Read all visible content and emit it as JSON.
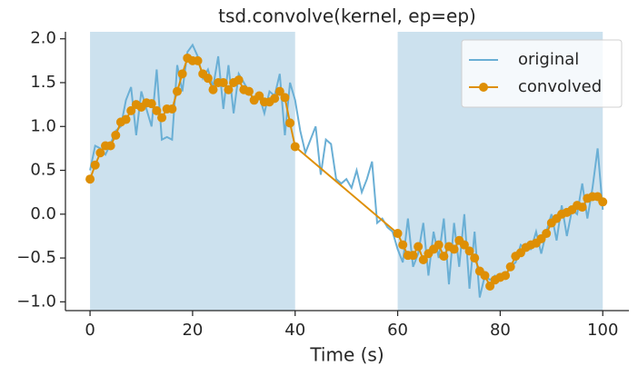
{
  "chart_data": {
    "type": "line",
    "title": "tsd.convolve(kernel, ep=ep)",
    "xlabel": "Time (s)",
    "xlim": [
      -4.8,
      105.1
    ],
    "ylim": [
      -1.1,
      2.08
    ],
    "xticks": [
      0,
      20,
      40,
      60,
      80,
      100
    ],
    "yticks": [
      {
        "value": -1,
        "label": "−1.0"
      },
      {
        "value": -0.5,
        "label": "−0.5"
      },
      {
        "value": 0,
        "label": "0.0"
      },
      {
        "value": 0.5,
        "label": "0.5"
      },
      {
        "value": 1,
        "label": "1.0"
      },
      {
        "value": 1.5,
        "label": "1.5"
      },
      {
        "value": 2,
        "label": "2.0"
      }
    ],
    "spans": [
      [
        0,
        40
      ],
      [
        60,
        100
      ]
    ],
    "span_color": "#cce1ee",
    "legend": "upper right",
    "series": [
      {
        "name": "original",
        "color": "#6aafd5",
        "marker": null,
        "x": [
          0,
          1,
          2,
          3,
          4,
          5,
          6,
          7,
          8,
          9,
          10,
          11,
          12,
          13,
          14,
          15,
          16,
          17,
          18,
          19,
          20,
          21,
          22,
          23,
          24,
          25,
          26,
          27,
          28,
          29,
          30,
          31,
          32,
          33,
          34,
          35,
          36,
          37,
          38,
          39,
          40,
          41,
          42,
          43,
          44,
          45,
          46,
          47,
          48,
          49,
          50,
          51,
          52,
          53,
          54,
          55,
          56,
          57,
          58,
          59,
          60,
          61,
          62,
          63,
          64,
          65,
          66,
          67,
          68,
          69,
          70,
          71,
          72,
          73,
          74,
          75,
          76,
          77,
          78,
          79,
          80,
          81,
          82,
          83,
          84,
          85,
          86,
          87,
          88,
          89,
          90,
          91,
          92,
          93,
          94,
          95,
          96,
          97,
          98,
          99,
          100
        ],
        "values": [
          0.5,
          0.78,
          0.75,
          0.68,
          0.8,
          0.95,
          1.0,
          1.3,
          1.45,
          0.9,
          1.4,
          1.2,
          1.0,
          1.65,
          0.85,
          0.88,
          0.85,
          1.7,
          1.4,
          1.85,
          1.93,
          1.8,
          1.55,
          1.65,
          1.45,
          1.8,
          1.2,
          1.7,
          1.15,
          1.6,
          1.5,
          1.4,
          1.3,
          1.35,
          1.15,
          1.4,
          1.35,
          1.6,
          0.9,
          1.5,
          1.3,
          0.95,
          0.7,
          0.85,
          1.0,
          0.45,
          0.85,
          0.8,
          0.4,
          0.35,
          0.4,
          0.3,
          0.5,
          0.25,
          0.4,
          0.6,
          -0.1,
          -0.05,
          -0.15,
          -0.2,
          -0.4,
          -0.55,
          -0.05,
          -0.6,
          -0.45,
          -0.1,
          -0.7,
          -0.2,
          -0.5,
          -0.05,
          -0.8,
          -0.1,
          -0.6,
          0.0,
          -0.85,
          -0.2,
          -0.95,
          -0.7,
          -0.75,
          -0.7,
          -0.75,
          -0.7,
          -0.6,
          -0.55,
          -0.35,
          -0.4,
          -0.4,
          -0.2,
          -0.45,
          -0.2,
          0.0,
          -0.3,
          0.1,
          -0.25,
          0.05,
          0.0,
          0.35,
          -0.05,
          0.3,
          0.75,
          0.05
        ]
      },
      {
        "name": "convolved",
        "color": "#de8f05",
        "marker": "o",
        "x": [
          0,
          1,
          2,
          3,
          4,
          5,
          6,
          7,
          8,
          9,
          10,
          11,
          12,
          13,
          14,
          15,
          16,
          17,
          18,
          19,
          20,
          21,
          22,
          23,
          24,
          25,
          26,
          27,
          28,
          29,
          30,
          31,
          32,
          33,
          34,
          35,
          36,
          37,
          38,
          39,
          40,
          60,
          61,
          62,
          63,
          64,
          65,
          66,
          67,
          68,
          69,
          70,
          71,
          72,
          73,
          74,
          75,
          76,
          77,
          78,
          79,
          80,
          81,
          82,
          83,
          84,
          85,
          86,
          87,
          88,
          89,
          90,
          91,
          92,
          93,
          94,
          95,
          96,
          97,
          98,
          99,
          100
        ],
        "values": [
          0.4,
          0.56,
          0.7,
          0.78,
          0.78,
          0.9,
          1.05,
          1.08,
          1.18,
          1.25,
          1.22,
          1.27,
          1.26,
          1.18,
          1.1,
          1.2,
          1.2,
          1.4,
          1.6,
          1.78,
          1.75,
          1.75,
          1.6,
          1.55,
          1.42,
          1.5,
          1.5,
          1.42,
          1.5,
          1.53,
          1.42,
          1.4,
          1.3,
          1.35,
          1.28,
          1.28,
          1.32,
          1.4,
          1.33,
          1.04,
          0.77,
          -0.22,
          -0.35,
          -0.47,
          -0.47,
          -0.37,
          -0.52,
          -0.45,
          -0.4,
          -0.35,
          -0.48,
          -0.37,
          -0.4,
          -0.3,
          -0.35,
          -0.42,
          -0.5,
          -0.65,
          -0.7,
          -0.82,
          -0.75,
          -0.72,
          -0.7,
          -0.6,
          -0.48,
          -0.44,
          -0.38,
          -0.35,
          -0.33,
          -0.28,
          -0.22,
          -0.1,
          -0.05,
          0.0,
          0.02,
          0.05,
          0.1,
          0.08,
          0.18,
          0.2,
          0.2,
          0.14
        ]
      }
    ]
  }
}
